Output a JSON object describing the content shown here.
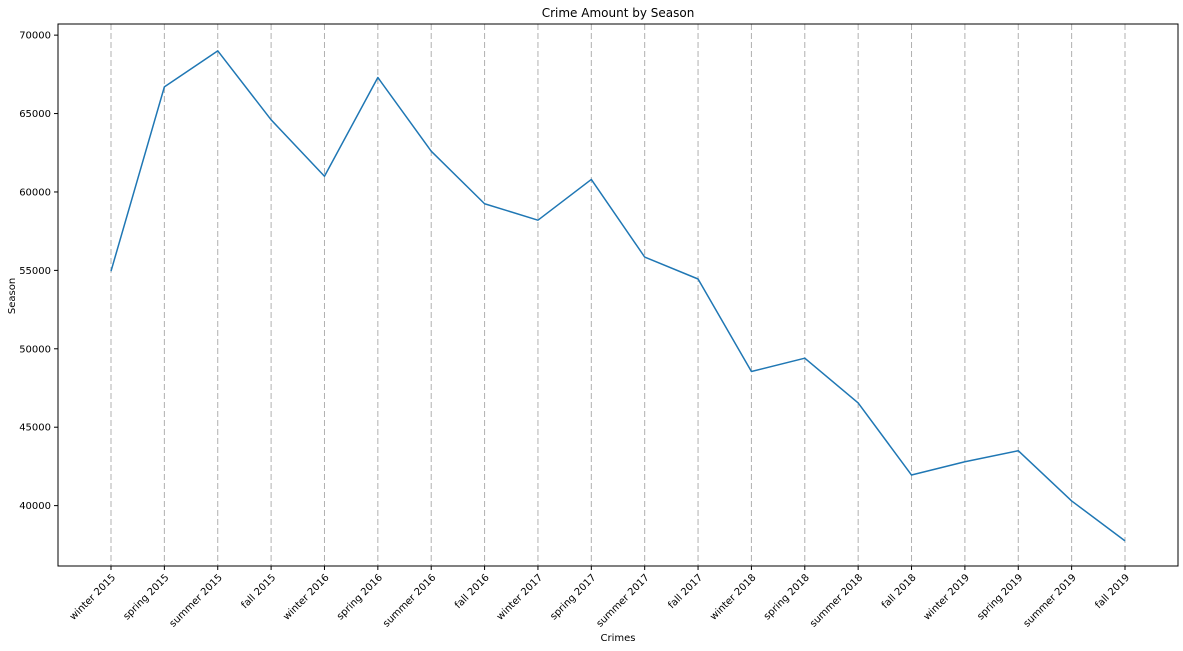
{
  "chart_data": {
    "type": "line",
    "title": "Crime Amount by Season",
    "xlabel": "Crimes",
    "ylabel": "Season",
    "categories": [
      "winter 2015",
      "spring 2015",
      "summer 2015",
      "fall 2015",
      "winter 2016",
      "spring 2016",
      "summer 2016",
      "fall 2016",
      "winter 2017",
      "spring 2017",
      "summer 2017",
      "fall 2017",
      "winter 2018",
      "spring 2018",
      "summer 2018",
      "fall 2018",
      "winter 2019",
      "spring 2019",
      "summer 2019",
      "fall 2019"
    ],
    "series": [
      {
        "values": [
          54950,
          66700,
          69000,
          64600,
          61000,
          67300,
          62600,
          59250,
          58200,
          60800,
          55850,
          54450,
          48550,
          49400,
          46550,
          41950,
          42800,
          43500,
          40300,
          37750
        ]
      }
    ],
    "yticks": [
      40000,
      45000,
      50000,
      55000,
      60000,
      65000,
      70000
    ],
    "ylim": [
      36150,
      70710
    ],
    "grid": {
      "x": true,
      "y": false,
      "style": "dashed"
    },
    "colors": {
      "line": "#1f77b4",
      "grid": "#b0b0b0",
      "axis": "#000000"
    },
    "legend": "none"
  }
}
